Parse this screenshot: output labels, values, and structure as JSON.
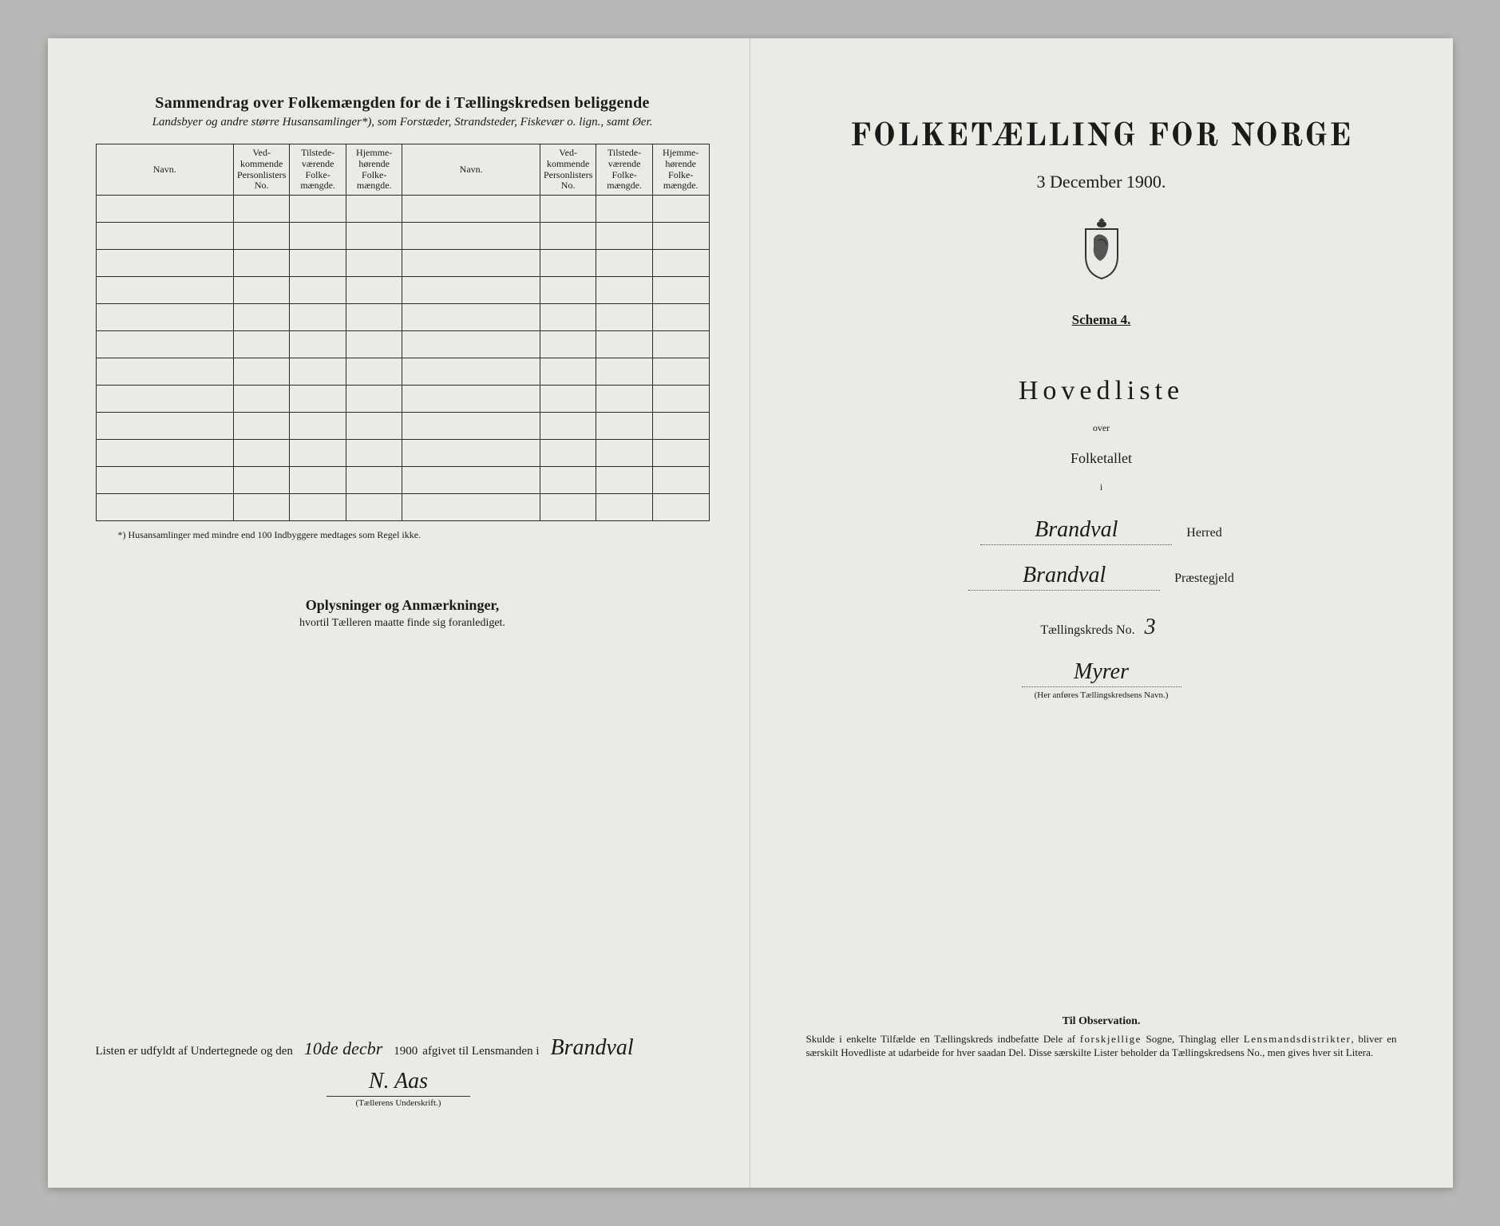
{
  "left": {
    "summary_title": "Sammendrag over Folkemængden for de i Tællingskredsen beliggende",
    "summary_sub": "Landsbyer og andre større Husansamlinger*), som Forstæder, Strandsteder, Fiskevær o. lign., samt Øer.",
    "columns": {
      "navn": "Navn.",
      "vedkommende": "Ved-\nkommende\nPersonlisters\nNo.",
      "tilstede": "Tilstede-\nværende\nFolke-\nmængde.",
      "hjemme": "Hjemme-\nhørende\nFolke-\nmængde."
    },
    "row_count": 12,
    "footnote": "*) Husansamlinger med mindre end 100 Indbyggere medtages som Regel ikke.",
    "oplysninger_title": "Oplysninger og Anmærkninger,",
    "oplysninger_sub": "hvortil Tælleren maatte finde sig foranlediget.",
    "sig_prefix": "Listen er udfyldt af Undertegnede og den",
    "sig_date": "10de decbr",
    "sig_year": "1900",
    "sig_mid": "afgivet til Lensmanden i",
    "sig_place": "Brandval",
    "sig_name": "N. Aas",
    "sig_caption": "(Tællerens Underskrift.)"
  },
  "right": {
    "title": "FOLKETÆLLING FOR NORGE",
    "date": "3 December 1900.",
    "schema": "Schema 4.",
    "hovedliste": "Hovedliste",
    "over": "over",
    "folketallet": "Folketallet",
    "small_i": "i",
    "herred_value": "Brandval",
    "herred_label": "Herred",
    "praeste_value": "Brandval",
    "praeste_label": "Præstegjeld",
    "kreds_label": "Tællingskreds No.",
    "kreds_no": "3",
    "kreds_name": "Myrer",
    "kreds_caption": "(Her anføres Tællingskredsens Navn.)",
    "obs_title": "Til Observation.",
    "obs_text": "Skulde i enkelte Tilfælde en Tællingskreds indbefatte Dele af forskjellige Sogne, Thinglag eller Lensmandsdistrikter, bliver en særskilt Hovedliste at udarbeide for hver saadan Del. Disse særskilte Lister beholder da Tællingskredsens No., men gives hver sit Litera."
  },
  "colors": {
    "paper": "#eceae4",
    "background": "#b8b8b6",
    "ink": "#1a1a1a",
    "rule": "#2a2a2a"
  }
}
